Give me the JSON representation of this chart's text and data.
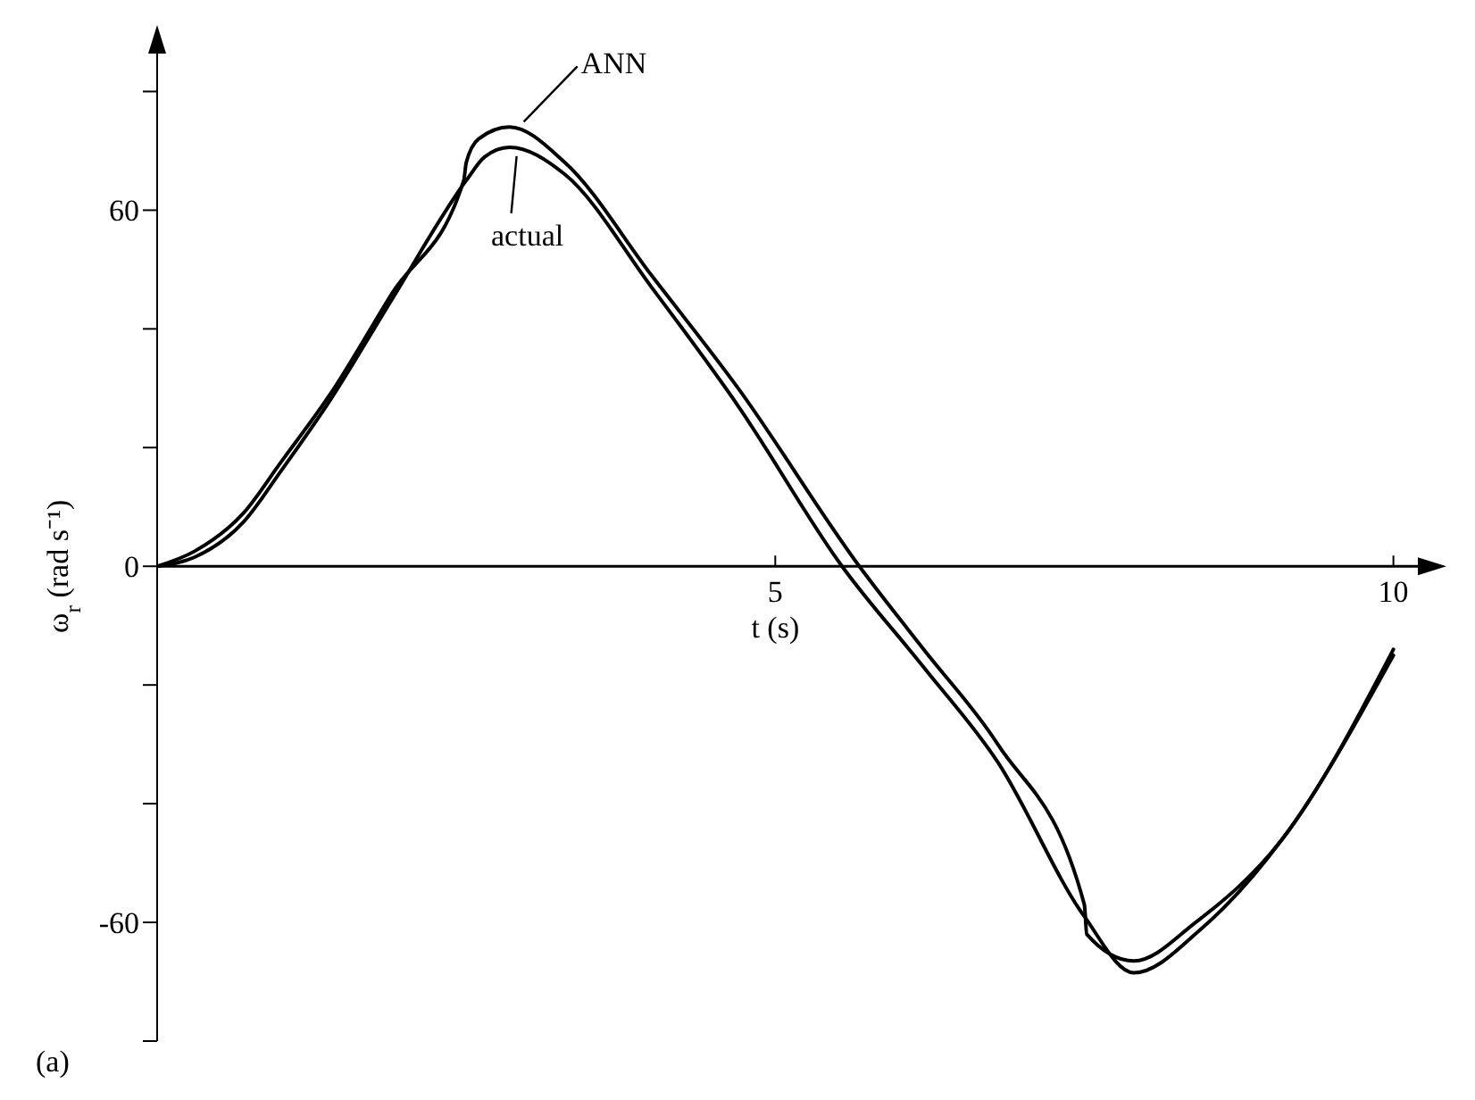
{
  "chart_data": {
    "type": "line",
    "xlabel": "t (s)",
    "ylabel": "ω$_{r}$ (rad s⁻¹)",
    "xlim": [
      0,
      10.4
    ],
    "xticks": [
      5,
      10
    ],
    "ylim": [
      -80,
      90
    ],
    "yticks": [
      {
        "value": -80,
        "label": null
      },
      -60,
      {
        "value": -40,
        "label": null
      },
      {
        "value": -20,
        "label": null
      },
      0,
      {
        "value": 20,
        "label": null
      },
      {
        "value": 40,
        "label": null
      },
      60,
      {
        "value": 80,
        "label": null
      }
    ],
    "series": [
      {
        "name": "ANN",
        "color": "#000000",
        "x": [
          0,
          0.3,
          0.7,
          1.0,
          1.4,
          1.9,
          2.48,
          2.5,
          2.6,
          2.85,
          3.3,
          4.0,
          4.7,
          5.68,
          6.2,
          6.8,
          7.5,
          7.52,
          7.9,
          8.4,
          9.1,
          10.0
        ],
        "values": [
          0,
          2.5,
          9,
          17.5,
          29,
          46,
          65,
          68,
          72,
          74,
          68,
          49,
          30,
          0,
          -14,
          -30,
          -57,
          -62,
          -66.5,
          -60,
          -46,
          -14
        ]
      },
      {
        "name": "actual",
        "color": "#000000",
        "x": [
          0,
          0.3,
          0.7,
          1.0,
          1.4,
          1.9,
          2.5,
          2.65,
          2.85,
          3.3,
          4.0,
          4.7,
          5.54,
          6.2,
          6.8,
          7.5,
          7.9,
          8.45,
          9.1,
          10.0
        ],
        "values": [
          0,
          1.5,
          7.5,
          16,
          28,
          45,
          65,
          69,
          70.6,
          66,
          47,
          27,
          0,
          -17,
          -33,
          -59,
          -68.5,
          -61,
          -46,
          -15
        ]
      }
    ],
    "annotations": [
      "(a)"
    ],
    "grid": false,
    "marker": "none",
    "line_style": "solid"
  }
}
